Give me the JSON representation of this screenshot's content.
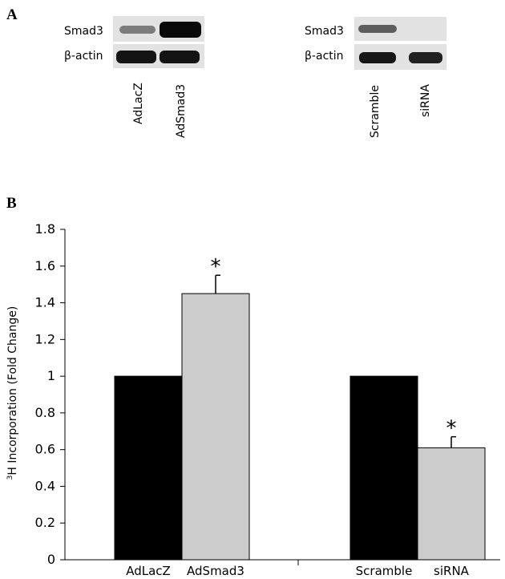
{
  "panel_a": {
    "letter": "A",
    "left_blot": {
      "row_labels": [
        "Smad3",
        "β-actin"
      ],
      "lanes": [
        "AdLacZ",
        "AdSmad3"
      ]
    },
    "right_blot": {
      "row_labels": [
        "Smad3",
        "β-actin"
      ],
      "lanes": [
        "Scramble",
        "siRNA"
      ]
    }
  },
  "panel_b": {
    "letter": "B",
    "ylabel_sup": "3",
    "ylabel_rest": "H Incorporation (Fold Change)"
  },
  "chart_data": {
    "type": "bar",
    "categories": [
      "AdLacZ",
      "AdSmad3",
      "Scramble",
      "siRNA"
    ],
    "values": [
      1.0,
      1.45,
      1.0,
      0.61
    ],
    "errors": [
      0.0,
      0.1,
      0.0,
      0.06
    ],
    "significance": [
      "",
      "*",
      "",
      "*"
    ],
    "bar_colors": [
      "#000000",
      "#cccccc",
      "#000000",
      "#cccccc"
    ],
    "ylim": [
      0,
      1.8
    ],
    "yticks": [
      0,
      0.2,
      0.4,
      0.6,
      0.8,
      1,
      1.2,
      1.4,
      1.6,
      1.8
    ],
    "ylabel": "3H Incorporation (Fold Change)",
    "xlabel": "",
    "groups": [
      [
        "AdLacZ",
        "AdSmad3"
      ],
      [
        "Scramble",
        "siRNA"
      ]
    ],
    "grid": false,
    "legend": "none"
  }
}
